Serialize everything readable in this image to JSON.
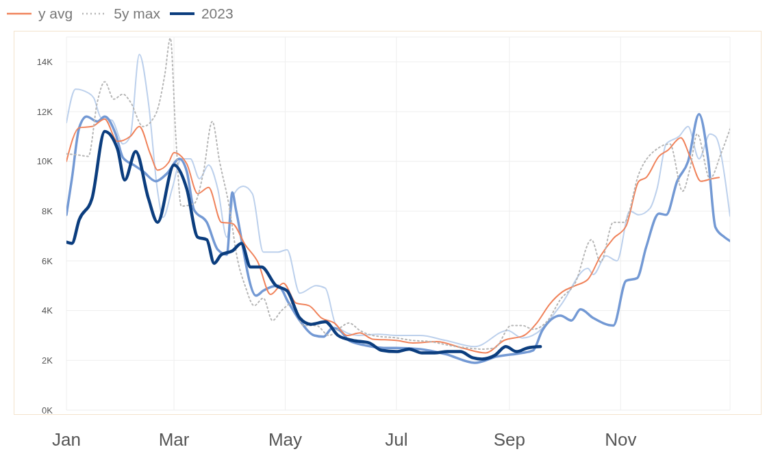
{
  "chart_data": {
    "type": "line",
    "xlim": [
      "--01-01",
      "--12-31"
    ],
    "ylim": [
      0,
      15000
    ],
    "xticks": [
      {
        "value": "--01-01",
        "label": "Jan"
      },
      {
        "value": "--03-01",
        "label": "Mar"
      },
      {
        "value": "--05-01",
        "label": "May"
      },
      {
        "value": "--07-01",
        "label": "Jul"
      },
      {
        "value": "--09-01",
        "label": "Sep"
      },
      {
        "value": "--11-01",
        "label": "Nov"
      }
    ],
    "yticks": [
      {
        "value": 0,
        "label": "0K"
      },
      {
        "value": 2000,
        "label": "2K"
      },
      {
        "value": 4000,
        "label": "4K"
      },
      {
        "value": 6000,
        "label": "6K"
      },
      {
        "value": 8000,
        "label": "8K"
      },
      {
        "value": 10000,
        "label": "10K"
      },
      {
        "value": 12000,
        "label": "12K"
      },
      {
        "value": 14000,
        "label": "14K"
      }
    ],
    "grid": true,
    "legend": "top left",
    "marker": "none",
    "series": [
      {
        "color": "#bcd0ec",
        "line_style": "solid",
        "x": [
          "--01-01",
          "--01-06",
          "--01-13",
          "--01-16",
          "--01-20",
          "--01-26",
          "--02-01",
          "--02-05",
          "--02-10",
          "--02-15",
          "--02-20",
          "--02-23",
          "--02-28",
          "--03-05",
          "--03-10",
          "--03-15",
          "--03-20",
          "--03-25",
          "--03-30",
          "--04-03",
          "--04-08",
          "--04-13",
          "--04-19",
          "--04-27",
          "--05-02",
          "--05-09",
          "--05-18",
          "--05-23",
          "--05-29",
          "--06-10",
          "--06-21",
          "--07-01",
          "--07-14",
          "--07-28",
          "--08-13",
          "--08-31",
          "--09-08",
          "--09-16",
          "--09-29",
          "--10-14",
          "--10-17",
          "--10-24",
          "--10-30",
          "--11-06",
          "--11-11",
          "--11-17",
          "--11-21",
          "--11-26",
          "--12-03",
          "--12-08",
          "--12-14",
          "--12-20",
          "--12-23",
          "--12-31"
        ],
        "values": [
          11550,
          12900,
          12750,
          12550,
          11750,
          11650,
          10700,
          11000,
          14300,
          12350,
          8800,
          7750,
          8900,
          10100,
          10100,
          9300,
          9850,
          8900,
          6950,
          8700,
          9000,
          8700,
          6350,
          6350,
          6450,
          4700,
          5000,
          4900,
          3400,
          3000,
          3050,
          3000,
          3000,
          2800,
          2550,
          3200,
          2900,
          3100,
          4200,
          5700,
          5450,
          6200,
          6000,
          8000,
          7850,
          8100,
          8900,
          10700,
          11000,
          11400,
          10100,
          11100,
          11000,
          7800
        ]
      },
      {
        "color": "#7399d4",
        "line_style": "solid",
        "x": [
          "--01-01",
          "--01-04",
          "--01-08",
          "--01-12",
          "--01-18",
          "--01-22",
          "--01-28",
          "--02-01",
          "--02-07",
          "--02-12",
          "--02-19",
          "--02-25",
          "--03-04",
          "--03-08",
          "--03-12",
          "--03-19",
          "--03-25",
          "--03-30",
          "--04-02",
          "--04-04",
          "--04-15",
          "--04-19",
          "--04-27",
          "--05-03",
          "--05-09",
          "--05-17",
          "--05-22",
          "--05-27",
          "--05-31",
          "--06-05",
          "--06-14",
          "--06-24",
          "--07-01",
          "--07-14",
          "--07-28",
          "--08-13",
          "--08-25",
          "--09-08",
          "--09-14",
          "--09-19",
          "--09-29",
          "--10-05",
          "--10-10",
          "--10-17",
          "--10-28",
          "--11-04",
          "--11-10",
          "--11-15",
          "--11-22",
          "--11-26",
          "--12-02",
          "--12-08",
          "--12-14",
          "--12-19",
          "--12-23",
          "--12-28",
          "--12-31"
        ],
        "values": [
          7850,
          9300,
          11350,
          11800,
          11600,
          11800,
          11100,
          10150,
          9850,
          9600,
          9200,
          9500,
          10100,
          9600,
          8050,
          7550,
          6450,
          6250,
          8750,
          8050,
          4600,
          4800,
          5000,
          4300,
          3600,
          3000,
          2950,
          3300,
          3200,
          2800,
          2600,
          2500,
          2500,
          2450,
          2250,
          1900,
          2150,
          2300,
          2400,
          3200,
          3800,
          3600,
          4050,
          3700,
          3400,
          5200,
          5300,
          6550,
          7900,
          7850,
          9200,
          10000,
          11900,
          10100,
          7350,
          6950,
          6800
        ]
      },
      {
        "name": "y avg",
        "color": "#f0825a",
        "line_style": "solid",
        "x": [
          "--01-01",
          "--01-08",
          "--01-15",
          "--01-22",
          "--01-29",
          "--02-05",
          "--02-10",
          "--02-16",
          "--02-20",
          "--02-26",
          "--03-01",
          "--03-08",
          "--03-14",
          "--03-20",
          "--03-27",
          "--04-02",
          "--04-09",
          "--04-16",
          "--04-23",
          "--04-30",
          "--05-07",
          "--05-14",
          "--05-21",
          "--05-28",
          "--06-04",
          "--06-11",
          "--06-18",
          "--07-01",
          "--07-10",
          "--07-23",
          "--08-06",
          "--08-19",
          "--08-29",
          "--09-09",
          "--09-16",
          "--09-23",
          "--09-30",
          "--10-07",
          "--10-14",
          "--10-21",
          "--10-28",
          "--11-04",
          "--11-11",
          "--11-15",
          "--11-22",
          "--11-27",
          "--12-04",
          "--12-09",
          "--12-15",
          "--12-21",
          "--12-25"
        ],
        "values": [
          10000,
          11350,
          11400,
          11700,
          10800,
          11000,
          11400,
          10300,
          9650,
          9950,
          10350,
          9900,
          8700,
          8950,
          7550,
          7500,
          6650,
          5950,
          4650,
          5100,
          4300,
          4200,
          3700,
          3500,
          3000,
          3100,
          2850,
          2800,
          2700,
          2750,
          2500,
          2300,
          2800,
          3000,
          3500,
          4250,
          4750,
          5000,
          5250,
          6200,
          6900,
          7400,
          9200,
          9350,
          10200,
          10450,
          10950,
          10200,
          9200,
          9300,
          9350
        ]
      },
      {
        "name": "5y max",
        "color": "#b5b5b5",
        "line_style": "dotted",
        "x": [
          "--01-01",
          "--01-08",
          "--01-13",
          "--01-18",
          "--01-22",
          "--01-27",
          "--02-01",
          "--02-05",
          "--02-12",
          "--02-19",
          "--02-24",
          "--02-27",
          "--03-02",
          "--03-05",
          "--03-12",
          "--03-17",
          "--03-22",
          "--03-26",
          "--03-31",
          "--04-05",
          "--04-09",
          "--04-14",
          "--04-19",
          "--04-24",
          "--04-29",
          "--05-05",
          "--05-11",
          "--05-18",
          "--05-25",
          "--05-31",
          "--06-05",
          "--06-11",
          "--06-18",
          "--07-01",
          "--07-10",
          "--07-20",
          "--07-30",
          "--08-09",
          "--08-17",
          "--08-24",
          "--09-02",
          "--09-08",
          "--09-14",
          "--09-22",
          "--09-29",
          "--10-07",
          "--10-16",
          "--10-21",
          "--10-28",
          "--11-03",
          "--11-11",
          "--11-22",
          "--11-28",
          "--12-05",
          "--12-09",
          "--12-13",
          "--12-20",
          "--12-26",
          "--12-31"
        ],
        "values": [
          10300,
          10250,
          10200,
          12400,
          13200,
          12500,
          12700,
          12400,
          11400,
          11900,
          13500,
          14950,
          11000,
          8200,
          8300,
          9500,
          11600,
          10000,
          8300,
          6000,
          5000,
          4200,
          4500,
          3600,
          4000,
          4300,
          3400,
          3400,
          3000,
          3300,
          3500,
          3200,
          3000,
          2900,
          2800,
          2750,
          2600,
          2500,
          2450,
          2500,
          3400,
          3400,
          3250,
          3600,
          4450,
          5100,
          6850,
          5950,
          7550,
          7550,
          9500,
          10550,
          10700,
          8800,
          9700,
          11100,
          9300,
          10300,
          11300
        ]
      },
      {
        "name": "2023",
        "color": "#0b3d7e",
        "line_style": "solid",
        "x": [
          "--01-01",
          "--01-04",
          "--01-08",
          "--01-15",
          "--01-22",
          "--01-29",
          "--02-02",
          "--02-08",
          "--02-15",
          "--02-20",
          "--03-01",
          "--03-08",
          "--03-14",
          "--03-19",
          "--03-23",
          "--03-27",
          "--04-02",
          "--04-07",
          "--04-12",
          "--04-18",
          "--04-26",
          "--05-02",
          "--05-09",
          "--05-15",
          "--05-23",
          "--05-30",
          "--06-07",
          "--06-16",
          "--06-23",
          "--07-01",
          "--07-08",
          "--07-15",
          "--07-22",
          "--07-29",
          "--08-05",
          "--08-12",
          "--08-17",
          "--08-24",
          "--08-30",
          "--09-05",
          "--09-11",
          "--09-18"
        ],
        "values": [
          6750,
          6700,
          7650,
          8500,
          11200,
          10500,
          9250,
          10400,
          8500,
          7550,
          9850,
          8900,
          6950,
          6850,
          5900,
          6250,
          6400,
          6700,
          5750,
          5750,
          5000,
          4800,
          3700,
          3450,
          3550,
          3000,
          2800,
          2700,
          2400,
          2350,
          2450,
          2300,
          2300,
          2350,
          2350,
          2100,
          2050,
          2200,
          2550,
          2350,
          2500,
          2550
        ]
      }
    ]
  }
}
